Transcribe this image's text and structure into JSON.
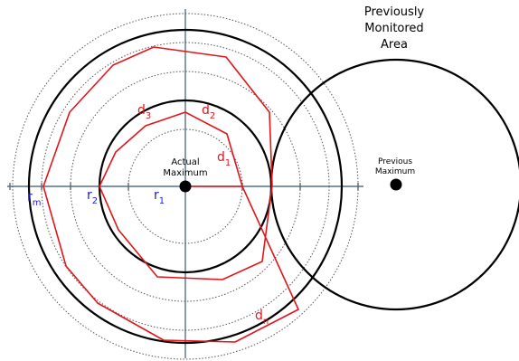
{
  "labels": {
    "previously_monitored_area": [
      "Previously",
      "Monitored",
      "Area"
    ],
    "actual_maximum": [
      "Actual",
      "Maximum"
    ],
    "previous_maximum": [
      "Previous",
      "Maximum"
    ],
    "r_m": {
      "base": "r",
      "sub": "m"
    },
    "r_2": {
      "base": "r",
      "sub": "2"
    },
    "r_1": {
      "base": "r",
      "sub": "1"
    },
    "d_1": {
      "base": "d",
      "sub": "1"
    },
    "d_2": {
      "base": "d",
      "sub": "2"
    },
    "d_3": {
      "base": "d",
      "sub": "3"
    },
    "d_n": {
      "base": "d",
      "sub": "n"
    }
  },
  "colors": {
    "axis": "#56708a",
    "circle": "#000000",
    "dotted": "#555555",
    "polygon": "#e0161b",
    "radius_label": "#1a1adb",
    "d_label": "#e0161b",
    "text": "#000000"
  }
}
